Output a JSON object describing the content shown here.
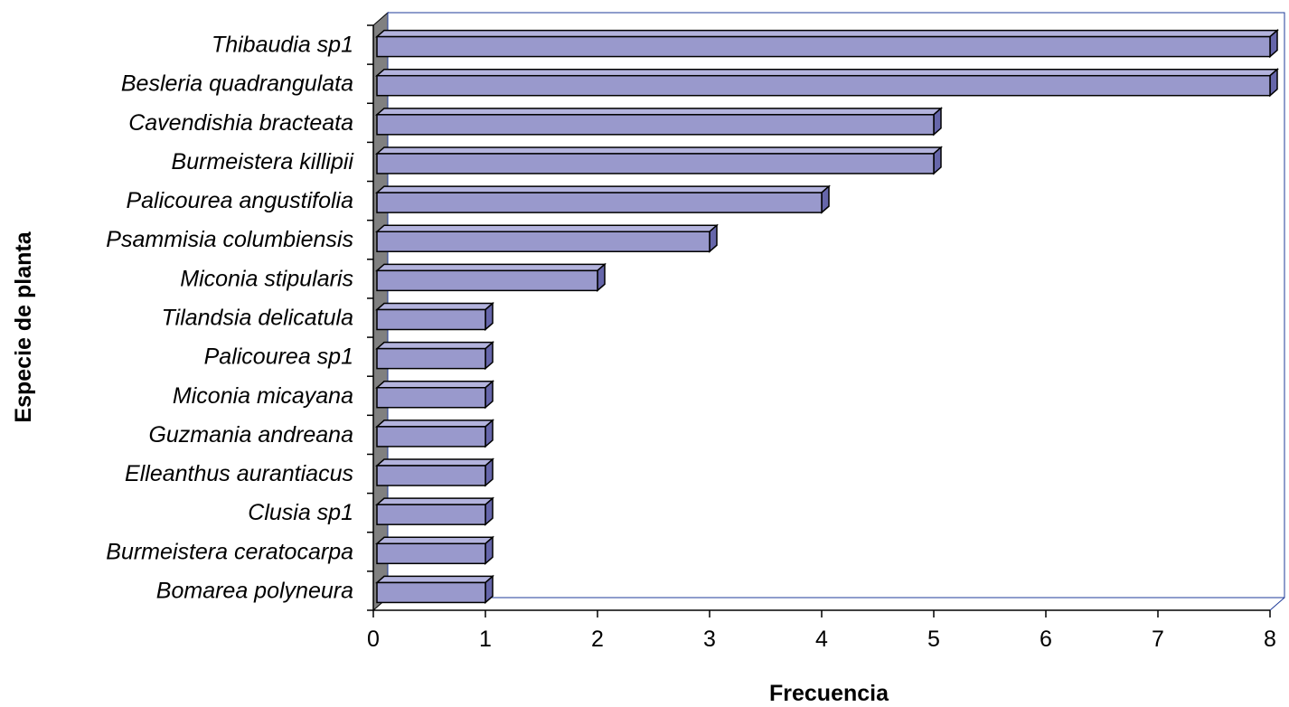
{
  "chart_data": {
    "type": "bar",
    "orientation": "horizontal",
    "style": "3d",
    "categories": [
      "Thibaudia sp1",
      "Besleria quadrangulata",
      "Cavendishia bracteata",
      "Burmeistera killipii",
      "Palicourea angustifolia",
      "Psammisia columbiensis",
      "Miconia stipularis",
      "Tilandsia delicatula",
      "Palicourea sp1",
      "Miconia micayana",
      "Guzmania andreana",
      "Elleanthus aurantiacus",
      "Clusia sp1",
      "Burmeistera ceratocarpa",
      "Bomarea polyneura"
    ],
    "values": [
      8,
      8,
      5,
      5,
      4,
      3,
      2,
      1,
      1,
      1,
      1,
      1,
      1,
      1,
      1
    ],
    "xlabel": "Frecuencia",
    "ylabel": "Especie de planta",
    "xlim": [
      0,
      8
    ],
    "xticks": [
      "0",
      "1",
      "2",
      "3",
      "4",
      "5",
      "6",
      "7",
      "8"
    ],
    "grid": false,
    "legend": "none",
    "colors": {
      "bar_front": "#9999cc",
      "bar_top": "#b3b3dd",
      "bar_side": "#6666aa",
      "bar_outline": "#000000",
      "wall": "#808080",
      "frame": "#1f3b99"
    }
  }
}
